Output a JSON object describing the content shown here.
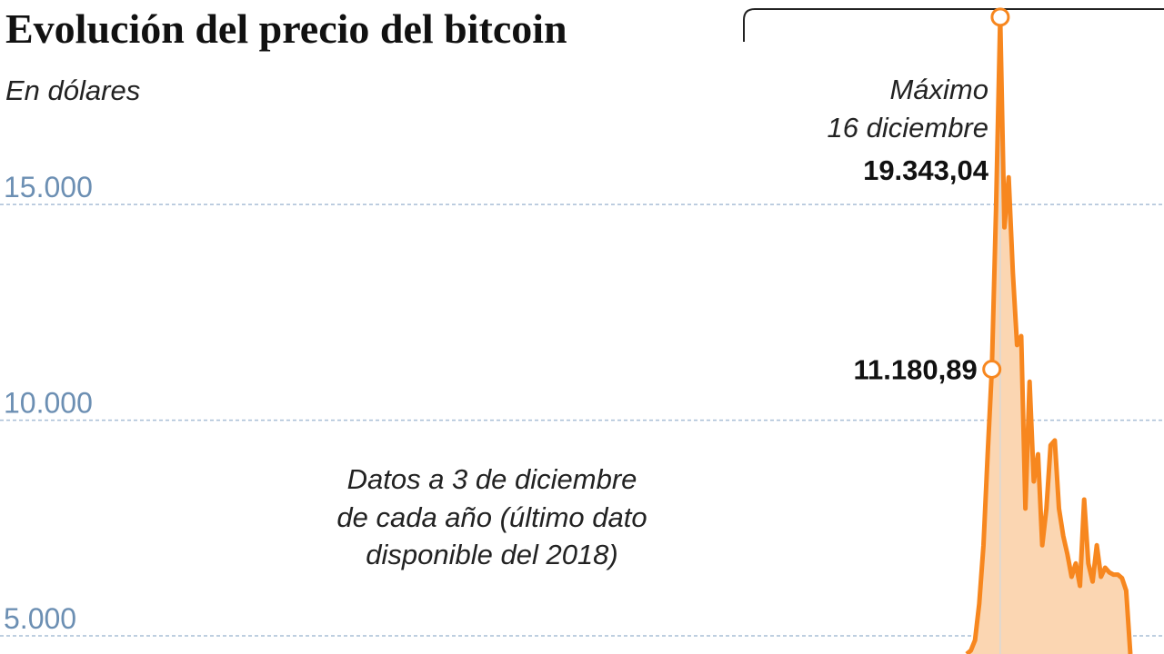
{
  "chart_data": {
    "type": "area",
    "title": "Evolución del precio del bitcoin",
    "subtitle": "En dólares",
    "note_lines": [
      "Datos a 3 de diciembre",
      "de cada año (último dato",
      "disponible del 2018)"
    ],
    "annotations": [
      "Máximo",
      "16 diciembre"
    ],
    "color": "#f7871f",
    "fill": "#fbd6b2",
    "grid": true,
    "ylim": [
      4580,
      19740
    ],
    "yticks": [
      {
        "value": 5000,
        "label": "5.000"
      },
      {
        "value": 10000,
        "label": "10.000"
      },
      {
        "value": 15000,
        "label": "15.000"
      }
    ],
    "values": [
      4580,
      4660,
      4900,
      5740,
      7100,
      9210,
      11180.89,
      14890,
      19343.04,
      14470,
      15630,
      13420,
      11740,
      11950,
      7950,
      10890,
      8580,
      9210,
      7100,
      7950,
      9420,
      9530,
      7950,
      7320,
      6890,
      6370,
      6680,
      6160,
      8160,
      6680,
      6260,
      7100,
      6370,
      6580,
      6470,
      6420,
      6420,
      6340,
      6050,
      4580
    ],
    "value_labels": [
      null,
      null,
      null,
      null,
      null,
      null,
      "11.180,89",
      null,
      "19.343,04",
      null,
      null,
      null,
      null,
      null,
      null,
      null,
      null,
      null,
      null,
      null,
      null,
      null,
      null,
      null,
      null,
      null,
      null,
      null,
      null,
      null,
      null,
      null,
      null,
      null,
      null,
      null,
      null,
      null,
      null,
      null
    ]
  }
}
